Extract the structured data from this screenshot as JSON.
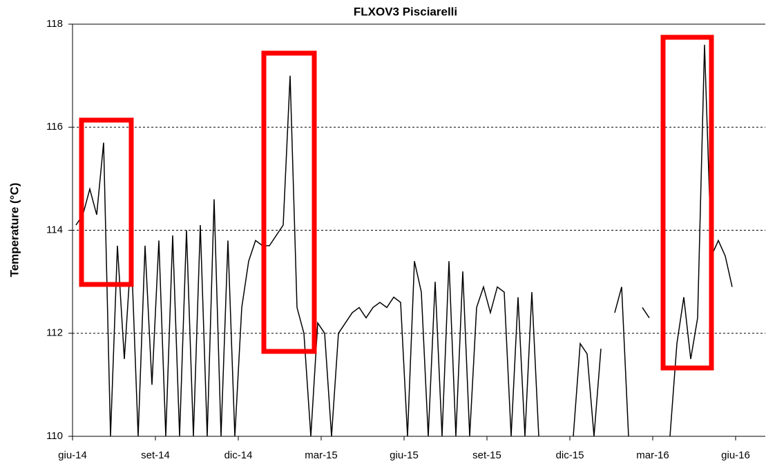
{
  "chart_data": {
    "type": "line",
    "title": "FLXOV3 Pisciarelli",
    "y_label": "Temperature (°C)",
    "x": [
      "2014-06",
      "2014-06",
      "2014-06",
      "2014-06",
      "2014-07",
      "2014-07",
      "2014-07",
      "2014-07",
      "2014-08",
      "2014-08",
      "2014-08",
      "2014-08",
      "2014-09",
      "2014-09",
      "2014-09",
      "2014-09",
      "2014-10",
      "2014-10",
      "2014-10",
      "2014-10",
      "2014-11",
      "2014-11",
      "2014-11",
      "2014-11",
      "2014-12",
      "2014-12",
      "2014-12",
      "2014-12",
      "2015-01",
      "2015-01",
      "2015-01",
      "2015-01",
      "2015-02",
      "2015-02",
      "2015-02",
      "2015-02",
      "2015-03",
      "2015-03",
      "2015-03",
      "2015-03",
      "2015-04",
      "2015-04",
      "2015-04",
      "2015-04",
      "2015-05",
      "2015-05",
      "2015-05",
      "2015-05",
      "2015-06",
      "2015-06",
      "2015-06",
      "2015-06",
      "2015-07",
      "2015-07",
      "2015-07",
      "2015-07",
      "2015-08",
      "2015-08",
      "2015-08",
      "2015-08",
      "2015-09",
      "2015-09",
      "2015-09",
      "2015-09",
      "2015-10",
      "2015-10",
      "2015-10",
      "2015-10",
      "2015-11",
      "2015-11",
      "2015-11",
      "2015-11",
      "2015-12",
      "2015-12",
      "2015-12",
      "2015-12",
      "2016-01",
      "2016-01",
      "2016-01",
      "2016-01",
      "2016-02",
      "2016-02",
      "2016-02",
      "2016-02",
      "2016-03",
      "2016-03",
      "2016-03",
      "2016-03",
      "2016-04",
      "2016-04",
      "2016-04",
      "2016-04",
      "2016-05",
      "2016-05",
      "2016-05",
      "2016-05"
    ],
    "series": [
      {
        "name": "FLXOV3",
        "color": "#000000",
        "values": [
          114.1,
          114.3,
          114.8,
          114.3,
          115.7,
          110,
          113.7,
          111.5,
          113.6,
          110,
          113.7,
          111,
          113.8,
          110,
          113.9,
          110,
          114.0,
          110,
          114.1,
          110,
          114.6,
          110,
          113.8,
          110,
          112.5,
          113.4,
          113.8,
          113.7,
          113.7,
          113.9,
          114.1,
          117.0,
          112.5,
          112.0,
          110,
          112.2,
          112.0,
          110,
          112.0,
          112.2,
          112.4,
          112.5,
          112.3,
          112.5,
          112.6,
          112.5,
          112.7,
          112.6,
          110,
          113.4,
          112.8,
          110,
          113.0,
          110,
          113.4,
          110,
          113.2,
          110,
          112.5,
          112.9,
          112.4,
          112.9,
          112.8,
          110,
          112.7,
          110,
          112.8,
          110,
          null,
          null,
          null,
          null,
          110,
          111.8,
          111.6,
          110,
          111.7,
          null,
          112.4,
          112.9,
          110,
          null,
          112.5,
          112.3,
          null,
          null,
          110,
          111.8,
          112.7,
          111.5,
          112.3,
          117.6,
          113.5,
          113.8,
          113.5,
          112.9
        ]
      }
    ],
    "xlim": [
      "2014-06",
      "2016-07"
    ],
    "xticks": [
      {
        "value": "2014-06",
        "label": "giu-14"
      },
      {
        "value": "2014-09",
        "label": "set-14"
      },
      {
        "value": "2014-12",
        "label": "dic-14"
      },
      {
        "value": "2015-03",
        "label": "mar-15"
      },
      {
        "value": "2015-06",
        "label": "giu-15"
      },
      {
        "value": "2015-09",
        "label": "set-15"
      },
      {
        "value": "2015-12",
        "label": "dic-15"
      },
      {
        "value": "2016-03",
        "label": "mar-16"
      },
      {
        "value": "2016-06",
        "label": "giu-16"
      }
    ],
    "ylim": [
      110,
      118
    ],
    "yticks": [
      110,
      112,
      114,
      116,
      118
    ],
    "grid": true
  }
}
